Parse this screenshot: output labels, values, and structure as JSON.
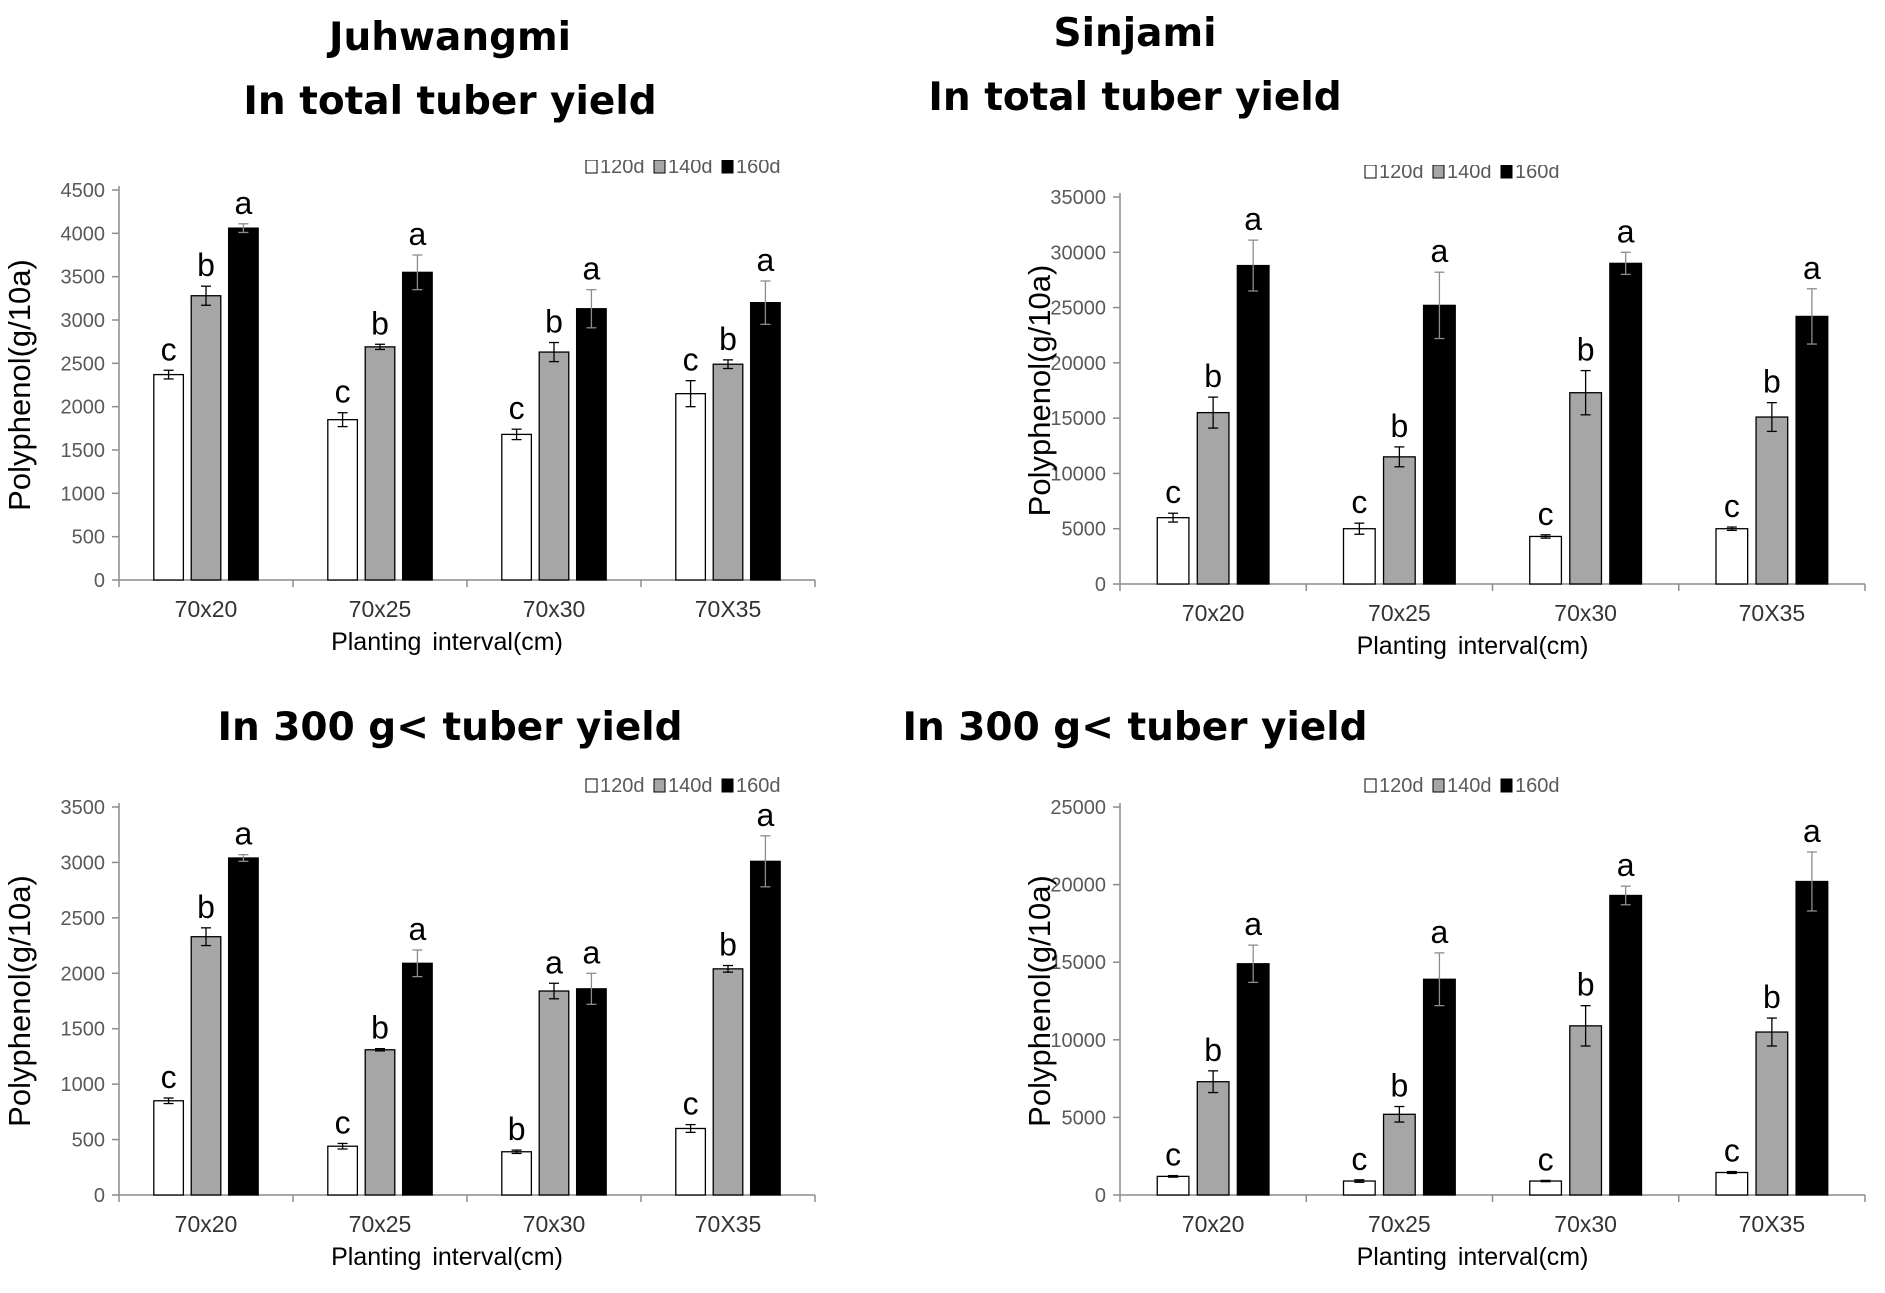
{
  "figure": {
    "col_titles": [
      "Juhwangmi",
      "Sinjami"
    ]
  },
  "legend_labels": [
    "120d",
    "140d",
    "160d"
  ],
  "chart_data": [
    {
      "type": "bar",
      "title": "In total tuber yield",
      "xlabel": "Planting interval(cm)",
      "ylabel": "Polyphenol(g/10a)",
      "categories": [
        "70x20",
        "70x25",
        "70x30",
        "70X35"
      ],
      "ylim": [
        0,
        4500
      ],
      "ytick_step": 500,
      "series": [
        {
          "name": "120d",
          "color": "#ffffff",
          "values": [
            2370,
            1850,
            1680,
            2150
          ],
          "errors": [
            50,
            80,
            60,
            150
          ],
          "letters": [
            "c",
            "c",
            "c",
            "c"
          ]
        },
        {
          "name": "140d",
          "color": "#a6a6a6",
          "values": [
            3280,
            2690,
            2630,
            2490
          ],
          "errors": [
            110,
            30,
            110,
            50
          ],
          "letters": [
            "b",
            "b",
            "b",
            "b"
          ]
        },
        {
          "name": "160d",
          "color": "#000000",
          "values": [
            4060,
            3550,
            3130,
            3200
          ],
          "errors": [
            50,
            200,
            220,
            250
          ],
          "letters": [
            "a",
            "a",
            "a",
            "a"
          ]
        }
      ]
    },
    {
      "type": "bar",
      "title": "In total tuber yield",
      "xlabel": "Planting interval(cm)",
      "ylabel": "Polyphenol(g/10a)",
      "categories": [
        "70x20",
        "70x25",
        "70x30",
        "70X35"
      ],
      "ylim": [
        0,
        35000
      ],
      "ytick_step": 5000,
      "series": [
        {
          "name": "120d",
          "color": "#ffffff",
          "values": [
            6000,
            5000,
            4300,
            5000
          ],
          "errors": [
            400,
            500,
            150,
            150
          ],
          "letters": [
            "c",
            "c",
            "c",
            "c"
          ]
        },
        {
          "name": "140d",
          "color": "#a6a6a6",
          "values": [
            15500,
            11500,
            17300,
            15100
          ],
          "errors": [
            1400,
            900,
            2000,
            1300
          ],
          "letters": [
            "b",
            "b",
            "b",
            "b"
          ]
        },
        {
          "name": "160d",
          "color": "#000000",
          "values": [
            28800,
            25200,
            29000,
            24200
          ],
          "errors": [
            2300,
            3000,
            1000,
            2500
          ],
          "letters": [
            "a",
            "a",
            "a",
            "a"
          ]
        }
      ]
    },
    {
      "type": "bar",
      "title": "In 300 g< tuber yield",
      "xlabel": "Planting interval(cm)",
      "ylabel": "Polyphenol(g/10a)",
      "categories": [
        "70x20",
        "70x25",
        "70x30",
        "70X35"
      ],
      "ylim": [
        0,
        3500
      ],
      "ytick_step": 500,
      "series": [
        {
          "name": "120d",
          "color": "#ffffff",
          "values": [
            850,
            440,
            390,
            600
          ],
          "errors": [
            25,
            25,
            15,
            35
          ],
          "letters": [
            "c",
            "c",
            "b",
            "c"
          ]
        },
        {
          "name": "140d",
          "color": "#a6a6a6",
          "values": [
            2330,
            1310,
            1840,
            2040
          ],
          "errors": [
            80,
            10,
            70,
            30
          ],
          "letters": [
            "b",
            "b",
            "a",
            "b"
          ]
        },
        {
          "name": "160d",
          "color": "#000000",
          "values": [
            3040,
            2090,
            1860,
            3010
          ],
          "errors": [
            30,
            120,
            140,
            230
          ],
          "letters": [
            "a",
            "a",
            "a",
            "a"
          ]
        }
      ]
    },
    {
      "type": "bar",
      "title": "In 300 g< tuber yield",
      "xlabel": "Planting interval(cm)",
      "ylabel": "Polyphenol(g/10a)",
      "categories": [
        "70x20",
        "70x25",
        "70x30",
        "70X35"
      ],
      "ylim": [
        0,
        25000
      ],
      "ytick_step": 5000,
      "series": [
        {
          "name": "120d",
          "color": "#ffffff",
          "values": [
            1200,
            900,
            900,
            1450
          ],
          "errors": [
            50,
            80,
            40,
            60
          ],
          "letters": [
            "c",
            "c",
            "c",
            "c"
          ]
        },
        {
          "name": "140d",
          "color": "#a6a6a6",
          "values": [
            7300,
            5200,
            10900,
            10500
          ],
          "errors": [
            700,
            500,
            1300,
            900
          ],
          "letters": [
            "b",
            "b",
            "b",
            "b"
          ]
        },
        {
          "name": "160d",
          "color": "#000000",
          "values": [
            14900,
            13900,
            19300,
            20200
          ],
          "errors": [
            1200,
            1700,
            600,
            1900
          ],
          "letters": [
            "a",
            "a",
            "a",
            "a"
          ]
        }
      ]
    }
  ]
}
